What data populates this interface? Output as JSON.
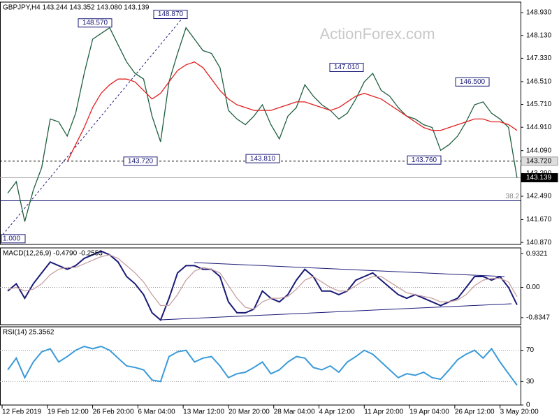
{
  "chart_data": [
    {
      "type": "line",
      "title": "GBPJPY,H4  143.244 143.352 143.080 143.139",
      "watermark": "ActionForex.com",
      "x": [
        4,
        10,
        16,
        22,
        28,
        34,
        40,
        46,
        52,
        58,
        64,
        70,
        76,
        82,
        88,
        94,
        100,
        106,
        112,
        118,
        124,
        130,
        136,
        142,
        148,
        154,
        160,
        166,
        172,
        178,
        184,
        190,
        196,
        202,
        208,
        214,
        220,
        226,
        232,
        238,
        244,
        250,
        256,
        262,
        268,
        274,
        280,
        286,
        292,
        298,
        304,
        310,
        316,
        322,
        328,
        334,
        340,
        346,
        352,
        358,
        364
      ],
      "series": [
        {
          "color": "#1f5f3f",
          "values": [
            142.6,
            143.0,
            141.6,
            142.7,
            143.5,
            145.2,
            145.1,
            144.6,
            145.4,
            146.8,
            148.0,
            148.2,
            148.4,
            147.8,
            147.2,
            146.8,
            146.6,
            145.3,
            144.4,
            146.5,
            147.5,
            148.4,
            148.0,
            147.6,
            147.5,
            147.0,
            145.5,
            145.2,
            145.0,
            145.3,
            145.7,
            145.0,
            144.5,
            145.3,
            145.6,
            146.4,
            146.0,
            145.7,
            145.5,
            145.2,
            145.4,
            145.9,
            146.5,
            146.8,
            146.2,
            146.0,
            145.6,
            145.3,
            145.2,
            145.0,
            144.9,
            144.1,
            144.3,
            144.6,
            145.1,
            145.7,
            145.8,
            145.4,
            145.2,
            144.9,
            143.139
          ]
        },
        {
          "color": "#e02020",
          "values": [
            null,
            null,
            null,
            null,
            null,
            null,
            null,
            143.7,
            144.3,
            144.9,
            145.6,
            146.1,
            146.4,
            146.6,
            146.6,
            146.5,
            146.2,
            145.9,
            146.1,
            146.5,
            146.9,
            147.1,
            147.2,
            147.0,
            146.6,
            146.2,
            145.9,
            145.7,
            145.6,
            145.5,
            145.5,
            145.5,
            145.6,
            145.7,
            145.8,
            145.8,
            145.7,
            145.6,
            145.5,
            145.6,
            145.8,
            146.0,
            146.1,
            146.0,
            145.9,
            145.7,
            145.5,
            145.3,
            145.1,
            144.9,
            144.8,
            144.8,
            144.9,
            145.0,
            145.1,
            145.2,
            145.2,
            145.1,
            145.1,
            145.0,
            144.8
          ]
        }
      ],
      "xlim": [
        -1.5,
        366.5
      ],
      "ylim": [
        140.8,
        149.3
      ],
      "yticks": [
        {
          "value": 140.87,
          "label": "140.870"
        },
        {
          "value": 141.67,
          "label": "141.670"
        },
        {
          "value": 142.49,
          "label": "142.490"
        },
        {
          "value": 143.29,
          "label": "143.290"
        },
        {
          "value": 144.09,
          "label": "144.090"
        },
        {
          "value": 144.91,
          "label": "144.910"
        },
        {
          "value": 145.71,
          "label": "145.710"
        },
        {
          "value": 146.51,
          "label": "146.510"
        },
        {
          "value": 147.33,
          "label": "147.330"
        },
        {
          "value": 148.13,
          "label": "148.130"
        },
        {
          "value": 148.93,
          "label": "148.930"
        }
      ],
      "annotations": [
        {
          "value": 148.57,
          "label": "148.570"
        },
        {
          "value": 148.87,
          "label": "148.870"
        },
        {
          "value": 143.72,
          "label": "143.720"
        },
        {
          "value": 143.81,
          "label": "143.810"
        },
        {
          "value": 147.01,
          "label": "147.010"
        },
        {
          "value": 146.5,
          "label": "146.500"
        },
        {
          "value": 143.76,
          "label": "143.760"
        }
      ],
      "hlines": [
        {
          "value": 143.72,
          "label": "143.720",
          "style": "dashed"
        },
        {
          "value": 143.139,
          "label": "143.139",
          "style": "current"
        }
      ],
      "fib_levels": [
        {
          "name": "1.000",
          "price": 141.0
        },
        {
          "name": "38.2",
          "price": 142.33
        }
      ]
    },
    {
      "type": "line",
      "title": "MACD(12,26,9) -0.4790 -0.2553",
      "x": [
        4,
        10,
        16,
        22,
        28,
        34,
        40,
        46,
        52,
        58,
        64,
        70,
        76,
        82,
        88,
        94,
        100,
        106,
        112,
        118,
        124,
        130,
        136,
        142,
        148,
        154,
        160,
        166,
        172,
        178,
        184,
        190,
        196,
        202,
        208,
        214,
        220,
        226,
        232,
        238,
        244,
        250,
        256,
        262,
        268,
        274,
        280,
        286,
        292,
        298,
        304,
        310,
        316,
        322,
        328,
        334,
        340,
        346,
        352,
        358,
        364
      ],
      "series": [
        {
          "color": "#1a1a78",
          "values": [
            -0.1,
            0.1,
            -0.3,
            0.1,
            0.4,
            0.7,
            0.6,
            0.5,
            0.6,
            0.8,
            0.9,
            1.0,
            0.9,
            0.7,
            0.3,
            0.1,
            -0.2,
            -0.7,
            -0.9,
            -0.3,
            0.4,
            0.6,
            0.6,
            0.5,
            0.5,
            0.3,
            -0.4,
            -0.7,
            -0.7,
            -0.6,
            -0.1,
            -0.3,
            -0.4,
            -0.2,
            0.2,
            0.5,
            0.3,
            -0.1,
            -0.1,
            -0.2,
            -0.1,
            0.2,
            0.3,
            0.4,
            0.2,
            0.0,
            -0.2,
            -0.3,
            -0.2,
            -0.3,
            -0.4,
            -0.5,
            -0.4,
            -0.3,
            0.0,
            0.3,
            0.3,
            0.2,
            0.3,
            0.0,
            -0.479
          ]
        },
        {
          "color": "#c8a0a0",
          "values": [
            -0.05,
            0.0,
            -0.1,
            -0.05,
            0.1,
            0.35,
            0.5,
            0.55,
            0.55,
            0.65,
            0.75,
            0.85,
            0.9,
            0.8,
            0.6,
            0.4,
            0.15,
            -0.2,
            -0.5,
            -0.5,
            -0.2,
            0.2,
            0.45,
            0.55,
            0.5,
            0.4,
            0.05,
            -0.3,
            -0.55,
            -0.6,
            -0.4,
            -0.3,
            -0.3,
            -0.25,
            -0.05,
            0.2,
            0.3,
            0.15,
            0.0,
            -0.1,
            -0.1,
            0.05,
            0.2,
            0.3,
            0.3,
            0.15,
            0.0,
            -0.15,
            -0.2,
            -0.25,
            -0.3,
            -0.4,
            -0.4,
            -0.35,
            -0.2,
            0.05,
            0.2,
            0.25,
            0.25,
            0.15,
            -0.2553
          ]
        }
      ],
      "xlim": [
        -1.5,
        366.5
      ],
      "ylim": [
        -1.03,
        1.09
      ],
      "yticks": [
        0.9321,
        {
          "value": 0,
          "label": "0.00"
        },
        -0.8347
      ],
      "levels": [
        0
      ]
    },
    {
      "type": "line",
      "title": "RSI(14) 25.3562",
      "x": [
        4,
        10,
        16,
        22,
        28,
        34,
        40,
        46,
        52,
        58,
        64,
        70,
        76,
        82,
        88,
        94,
        100,
        106,
        112,
        118,
        124,
        130,
        136,
        142,
        148,
        154,
        160,
        166,
        172,
        178,
        184,
        190,
        196,
        202,
        208,
        214,
        220,
        226,
        232,
        238,
        244,
        250,
        256,
        262,
        268,
        274,
        280,
        286,
        292,
        298,
        304,
        310,
        316,
        322,
        328,
        334,
        340,
        346,
        352,
        358,
        364
      ],
      "series": [
        {
          "color": "#3a9ad9",
          "values": [
            45,
            60,
            35,
            55,
            68,
            72,
            55,
            62,
            70,
            75,
            72,
            75,
            70,
            60,
            50,
            48,
            45,
            32,
            30,
            62,
            68,
            70,
            55,
            60,
            62,
            50,
            35,
            40,
            42,
            48,
            55,
            40,
            45,
            55,
            62,
            60,
            48,
            45,
            50,
            42,
            55,
            62,
            70,
            65,
            55,
            45,
            35,
            40,
            38,
            42,
            35,
            33,
            45,
            58,
            65,
            70,
            60,
            72,
            55,
            40,
            25.3562
          ]
        }
      ],
      "xlim": [
        -1.5,
        366.5
      ],
      "ylim": [
        0,
        100
      ],
      "yticks": [
        70,
        30,
        0
      ],
      "levels": [
        70,
        30
      ],
      "xticks": [
        {
          "value": 0,
          "label": "12 Feb 2019"
        },
        {
          "value": 32,
          "label": "19 Feb 12:00"
        },
        {
          "value": 64,
          "label": "26 Feb 20:00"
        },
        {
          "value": 96,
          "label": "6 Mar 04:00"
        },
        {
          "value": 128,
          "label": "13 Mar 12:00"
        },
        {
          "value": 160,
          "label": "20 Mar 20:00"
        },
        {
          "value": 192,
          "label": "28 Mar 04:00"
        },
        {
          "value": 224,
          "label": "4 Apr 12:00"
        },
        {
          "value": 256,
          "label": "11 Apr 20:00"
        },
        {
          "value": 288,
          "label": "19 Apr 04:00"
        },
        {
          "value": 320,
          "label": "26 Apr 12:00"
        },
        {
          "value": 352,
          "label": "3 May 20:00"
        }
      ]
    }
  ]
}
